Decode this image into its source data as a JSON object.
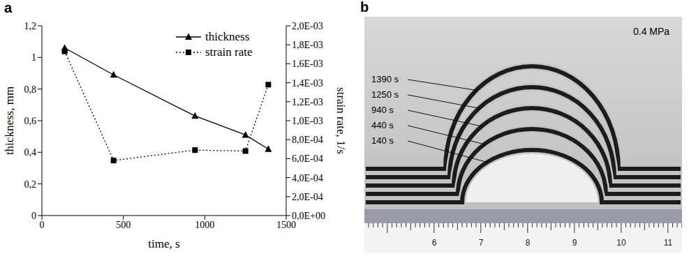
{
  "chart_data": {
    "type": "line",
    "panel_label": "a",
    "x_label": "time, s",
    "y_label": "thickness, mm",
    "y2_label": "strain rate, 1/s",
    "x": [
      140,
      440,
      940,
      1250,
      1390
    ],
    "series": [
      {
        "name": "thickness",
        "color": "#000000",
        "marker": "triangle",
        "line_style": "solid",
        "values": [
          1.06,
          0.89,
          0.63,
          0.51,
          0.42
        ]
      },
      {
        "name": "strain rate",
        "color": "#000000",
        "marker": "square",
        "line_style": "dotted",
        "axis": "y2",
        "values": [
          0.00173,
          0.00058,
          0.00069,
          0.00068,
          0.00138
        ]
      }
    ],
    "xlim": [
      0,
      1500
    ],
    "xticks": [
      0,
      500,
      1000,
      1500
    ],
    "ylim": [
      0,
      1.2
    ],
    "yticks": [
      0,
      {
        "value": 0.2,
        "label": "0,2"
      },
      {
        "value": 0.4,
        "label": "0,4"
      },
      {
        "value": 0.6,
        "label": "0,6"
      },
      {
        "value": 0.8,
        "label": "0,8"
      },
      1,
      {
        "value": 1.2,
        "label": "1,2"
      }
    ],
    "y2lim": [
      0,
      0.002
    ],
    "y2ticks": [
      {
        "value": 0,
        "label": "0,0E+00"
      },
      {
        "value": 0.0002,
        "label": "2,0E-04"
      },
      {
        "value": 0.0004,
        "label": "4,0E-04"
      },
      {
        "value": 0.0006,
        "label": "6,0E-04"
      },
      {
        "value": 0.0008,
        "label": "8,0E-04"
      },
      {
        "value": 0.001,
        "label": "1,0E-03"
      },
      {
        "value": 0.0012,
        "label": "1,2E-03"
      },
      {
        "value": 0.0014,
        "label": "1,4E-03"
      },
      {
        "value": 0.0016,
        "label": "1,6E-03"
      },
      {
        "value": 0.0018,
        "label": "1,8E-03"
      },
      {
        "value": 0.002,
        "label": "2,0E-03"
      }
    ],
    "grid": false,
    "legend": "upper right"
  },
  "photo": {
    "panel_label": "b",
    "annotation": "0.4 MPa",
    "labels": [
      "1390 s",
      "1250 s",
      "940 s",
      "440 s",
      "140 s"
    ],
    "ruler_labels": [
      6,
      7,
      8,
      9,
      10,
      11
    ]
  }
}
